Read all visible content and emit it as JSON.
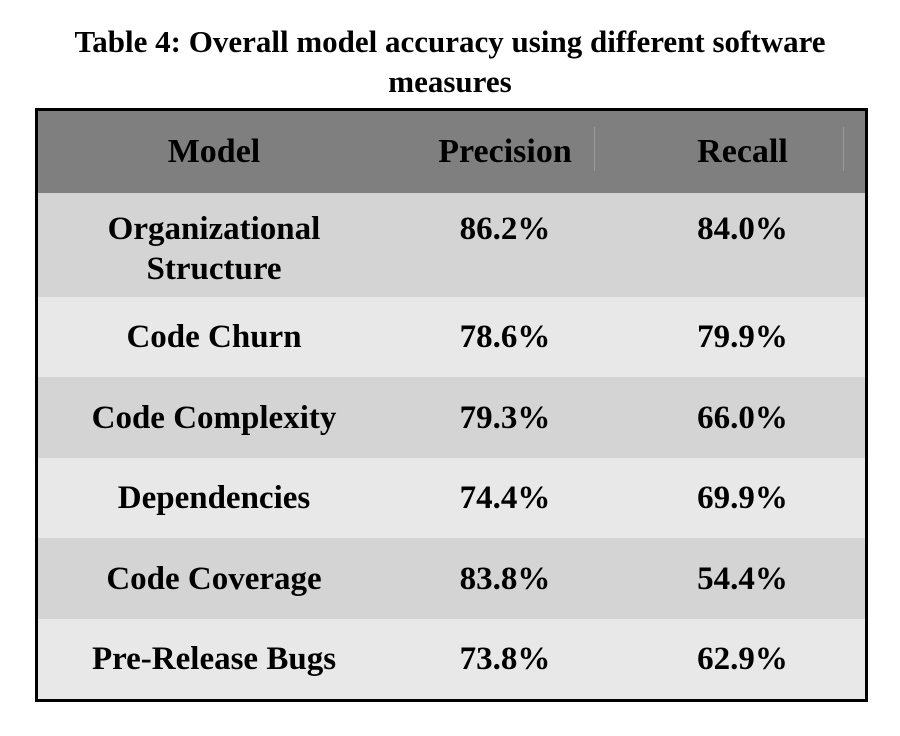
{
  "caption": {
    "line1": "Table 4: Overall model accuracy using different software",
    "line2": "measures"
  },
  "table": {
    "headers": {
      "model": "Model",
      "precision": "Precision",
      "recall": "Recall"
    },
    "rows": [
      {
        "model_line1": "Organizational",
        "model_line2": "Structure",
        "precision": "86.2%",
        "recall": "84.0%"
      },
      {
        "model": "Code Churn",
        "precision": "78.6%",
        "recall": "79.9%"
      },
      {
        "model": "Code Complexity",
        "precision": "79.3%",
        "recall": "66.0%"
      },
      {
        "model": "Dependencies",
        "precision": "74.4%",
        "recall": "69.9%"
      },
      {
        "model": "Code Coverage",
        "precision": "83.8%",
        "recall": "54.4%"
      },
      {
        "model": "Pre-Release Bugs",
        "precision": "73.8%",
        "recall": "62.9%"
      }
    ]
  },
  "colors": {
    "header_bg": "#7f7f7f",
    "row_dark": "#d4d4d4",
    "row_light": "#e8e8e8",
    "border": "#000000"
  }
}
